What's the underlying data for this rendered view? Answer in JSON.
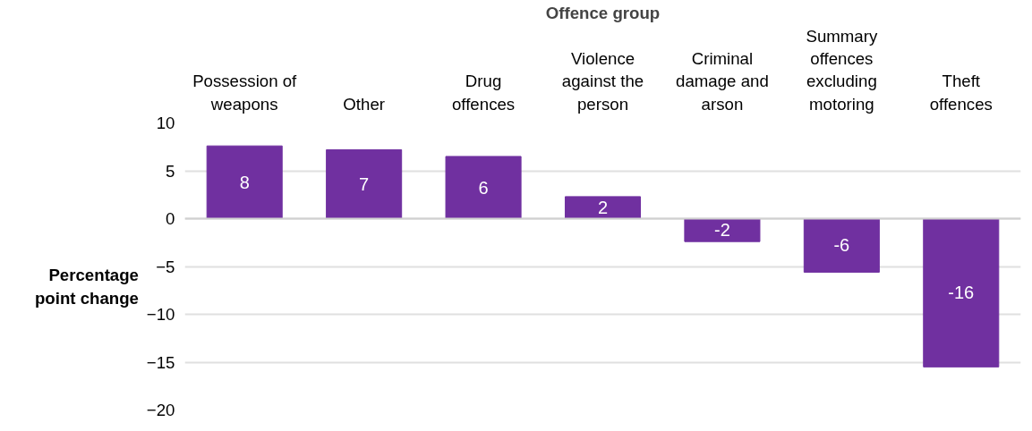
{
  "chart_data": {
    "type": "bar",
    "xlabel": "Offence group",
    "ylabel": "Percentage point change",
    "categories": [
      "Possession of\nweapons",
      "Other",
      "Drug\noffences",
      "Violence\nagainst the\nperson",
      "Criminal\ndamage and\narson",
      "Summary\noffences\nexcluding\nmotoring",
      "Theft\noffences"
    ],
    "values": [
      7.6,
      7.2,
      6.5,
      2.3,
      -2.4,
      -5.6,
      -15.5
    ],
    "value_labels": [
      "8",
      "7",
      "6",
      "2",
      "-2",
      "-6",
      "-16"
    ],
    "color": "#7030a0",
    "ylim": [
      -20,
      10
    ],
    "yticks": [
      -20,
      -15,
      -10,
      -5,
      0,
      5,
      10
    ],
    "grid": "y",
    "ref_lines": [
      {
        "axis": "y",
        "value": 0,
        "color": "#d0d0d0"
      }
    ]
  }
}
